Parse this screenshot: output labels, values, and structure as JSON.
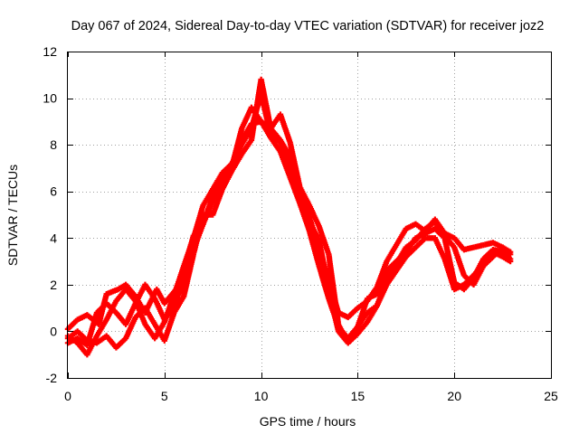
{
  "chart_data": {
    "type": "scatter",
    "title": "Day 067 of 2024, Sidereal Day-to-day VTEC variation (SDTVAR) for receiver joz2",
    "xlabel": "GPS time / hours",
    "ylabel": "SDTVAR / TECUs",
    "xlim": [
      0,
      25
    ],
    "ylim": [
      -2,
      12
    ],
    "xticks": [
      0,
      5,
      10,
      15,
      20,
      25
    ],
    "yticks": [
      -2,
      0,
      2,
      4,
      6,
      8,
      10,
      12
    ],
    "grid": true,
    "marker": "plus",
    "series": [
      {
        "name": "trace-1",
        "color": "#ff0000",
        "x": [
          0.0,
          0.5,
          1.0,
          1.6,
          2.0,
          2.6,
          3.0,
          3.5,
          4.0,
          4.6,
          5.0,
          5.6,
          6.0,
          6.5,
          7.0,
          7.5,
          8.0,
          8.5,
          9.0,
          9.5,
          10.0,
          10.5,
          11.0,
          11.5,
          12.0,
          12.5,
          13.0,
          13.5,
          14.0,
          14.5,
          15.0,
          15.5,
          16.0,
          16.5,
          17.0,
          17.5,
          18.0,
          18.5,
          19.0,
          19.5,
          20.0,
          20.5,
          21.0,
          21.5,
          22.0,
          22.5,
          22.9
        ],
        "y": [
          0.1,
          0.5,
          0.7,
          0.3,
          1.6,
          1.8,
          2.0,
          1.5,
          0.8,
          1.8,
          1.2,
          1.8,
          2.8,
          4.0,
          5.4,
          6.1,
          6.8,
          7.2,
          8.2,
          8.9,
          9.0,
          8.7,
          8.2,
          7.5,
          6.0,
          4.9,
          3.5,
          2.2,
          0.8,
          0.6,
          1.0,
          1.3,
          1.9,
          3.0,
          3.7,
          4.4,
          4.6,
          4.3,
          4.8,
          4.2,
          4.0,
          3.5,
          3.6,
          3.7,
          3.8,
          3.6,
          3.3
        ]
      },
      {
        "name": "trace-2",
        "color": "#ff0000",
        "x": [
          0.0,
          0.5,
          1.0,
          1.5,
          2.0,
          2.5,
          3.0,
          3.5,
          4.0,
          4.5,
          5.0,
          5.5,
          6.0,
          6.5,
          7.0,
          7.5,
          8.0,
          8.5,
          9.0,
          9.5,
          10.0,
          10.5,
          11.0,
          11.5,
          12.0,
          12.5,
          13.0,
          13.5,
          14.0,
          14.5,
          15.0,
          15.5,
          16.0,
          16.5,
          17.0,
          17.5,
          18.0,
          18.5,
          19.0,
          19.5,
          20.0,
          20.5,
          21.0,
          21.5,
          22.0,
          22.5,
          22.9
        ],
        "y": [
          -0.5,
          -0.3,
          -0.6,
          0.8,
          1.2,
          0.8,
          0.3,
          1.2,
          2.0,
          1.4,
          0.5,
          1.0,
          2.3,
          3.5,
          4.6,
          5.8,
          6.5,
          7.1,
          8.7,
          9.6,
          9.0,
          8.3,
          7.7,
          6.6,
          5.5,
          4.3,
          2.8,
          1.4,
          0.2,
          -0.3,
          0.2,
          0.8,
          1.1,
          2.2,
          2.9,
          3.6,
          3.9,
          4.4,
          4.7,
          4.1,
          3.6,
          2.4,
          2.0,
          2.8,
          3.2,
          3.6,
          3.4
        ]
      },
      {
        "name": "trace-3",
        "color": "#ff0000",
        "x": [
          0.0,
          0.5,
          1.0,
          1.5,
          2.0,
          2.5,
          3.0,
          3.5,
          4.0,
          4.5,
          5.0,
          5.5,
          6.0,
          6.5,
          7.0,
          7.5,
          8.0,
          8.5,
          9.0,
          9.5,
          10.0,
          10.5,
          11.0,
          11.5,
          12.0,
          12.5,
          13.0,
          13.5,
          14.0,
          14.5,
          15.0,
          15.5,
          16.0,
          16.5,
          17.0,
          17.5,
          18.0,
          18.5,
          19.0,
          19.5,
          20.0,
          20.5,
          21.0,
          21.5,
          22.0,
          22.5,
          22.9
        ],
        "y": [
          -0.2,
          -0.5,
          -1.0,
          -0.2,
          0.5,
          1.3,
          1.8,
          1.3,
          0.3,
          -0.3,
          0.4,
          1.6,
          2.6,
          4.1,
          4.6,
          5.6,
          6.4,
          7.2,
          8.0,
          8.7,
          10.2,
          8.4,
          8.1,
          7.1,
          5.8,
          4.7,
          3.9,
          1.8,
          0.0,
          -0.5,
          -0.1,
          0.4,
          1.1,
          2.0,
          2.6,
          3.2,
          3.6,
          4.0,
          4.0,
          3.1,
          1.8,
          2.0,
          2.4,
          2.9,
          3.4,
          3.2,
          3.0
        ]
      },
      {
        "name": "trace-4",
        "color": "#ff0000",
        "x": [
          0.0,
          0.5,
          1.0,
          1.5,
          2.0,
          2.5,
          3.0,
          3.5,
          4.0,
          4.5,
          5.0,
          5.5,
          6.0,
          6.5,
          7.0,
          7.5,
          8.0,
          8.5,
          9.0,
          9.5,
          10.0,
          10.5,
          11.0,
          11.5,
          12.0,
          12.5,
          13.0,
          13.5,
          14.0,
          14.5,
          15.0,
          15.5,
          16.0,
          16.5,
          17.0,
          17.5,
          18.0,
          18.5,
          19.0,
          19.5,
          20.0,
          20.5,
          21.0,
          21.5,
          22.0,
          22.5,
          22.9
        ],
        "y": [
          -0.3,
          0.0,
          -0.4,
          -0.5,
          -0.2,
          -0.7,
          -0.3,
          0.6,
          1.0,
          0.3,
          -0.4,
          0.8,
          1.5,
          3.3,
          5.0,
          5.0,
          6.1,
          6.9,
          7.6,
          8.2,
          10.8,
          8.7,
          9.3,
          8.1,
          6.2,
          5.4,
          4.5,
          3.3,
          0.3,
          -0.5,
          0.2,
          1.4,
          1.6,
          2.6,
          3.0,
          3.4,
          4.0,
          4.2,
          4.4,
          4.0,
          2.1,
          1.8,
          2.3,
          3.1,
          3.5,
          3.4,
          3.1
        ]
      }
    ]
  }
}
